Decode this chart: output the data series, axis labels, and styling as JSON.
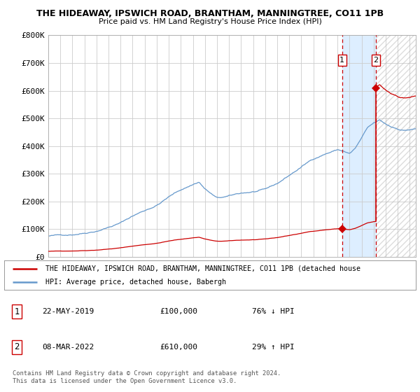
{
  "title": "THE HIDEAWAY, IPSWICH ROAD, BRANTHAM, MANNINGTREE, CO11 1PB",
  "subtitle": "Price paid vs. HM Land Registry's House Price Index (HPI)",
  "legend_line1": "THE HIDEAWAY, IPSWICH ROAD, BRANTHAM, MANNINGTREE, CO11 1PB (detached house",
  "legend_line2": "HPI: Average price, detached house, Babergh",
  "table_rows": [
    {
      "num": "1",
      "date": "22-MAY-2019",
      "price": "£100,000",
      "hpi": "76% ↓ HPI"
    },
    {
      "num": "2",
      "date": "08-MAR-2022",
      "price": "£610,000",
      "hpi": "29% ↑ HPI"
    }
  ],
  "footer": "Contains HM Land Registry data © Crown copyright and database right 2024.\nThis data is licensed under the Open Government Licence v3.0.",
  "ylim": [
    0,
    800000
  ],
  "yticks": [
    0,
    100000,
    200000,
    300000,
    400000,
    500000,
    600000,
    700000,
    800000
  ],
  "ytick_labels": [
    "£0",
    "£100K",
    "£200K",
    "£300K",
    "£400K",
    "£500K",
    "£600K",
    "£700K",
    "£800K"
  ],
  "hpi_color": "#6699cc",
  "price_color": "#cc0000",
  "dot_color": "#cc0000",
  "vline_color": "#cc0000",
  "shade_color": "#ddeeff",
  "background_color": "#ffffff",
  "grid_color": "#cccccc",
  "transaction1_x": 2019.39,
  "transaction1_y": 100000,
  "transaction2_x": 2022.18,
  "transaction2_y": 610000,
  "xmin": 1995.0,
  "xmax": 2025.5,
  "shade_start": 2019.39,
  "shade_end": 2022.18,
  "hatch_start": 2022.18,
  "hatch_end": 2025.5
}
